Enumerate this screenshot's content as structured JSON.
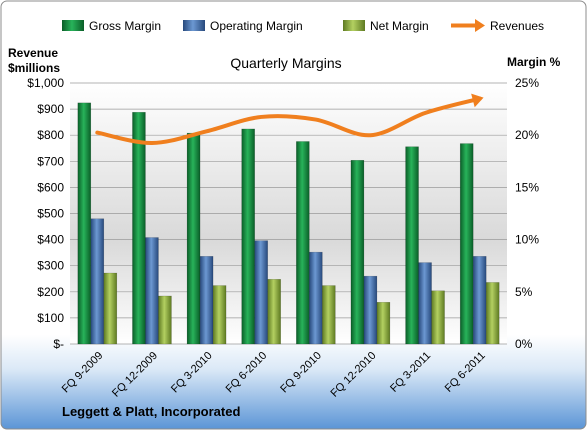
{
  "chart_data": {
    "type": "bar",
    "title": "Quarterly Margins",
    "footer": "Leggett & Platt, Incorporated",
    "y_left_label": [
      "Revenue",
      "$millions"
    ],
    "y_right_label": "Margin %",
    "categories": [
      "FQ 9-2009",
      "FQ 12-2009",
      "FQ 3-2010",
      "FQ 6-2010",
      "FQ 9-2010",
      "FQ 12-2010",
      "FQ 3-2011",
      "FQ 6-2011"
    ],
    "left_ticks": [
      "$-",
      "$100",
      "$200",
      "$300",
      "$400",
      "$500",
      "$600",
      "$700",
      "$800",
      "$900",
      "$1,000"
    ],
    "right_ticks": [
      "0%",
      "5%",
      "10%",
      "15%",
      "20%",
      "25%"
    ],
    "ylim_left": [
      0,
      1000
    ],
    "ylim_right": [
      0,
      25
    ],
    "legend_position": "top",
    "series": [
      {
        "name": "Gross Margin",
        "kind": "bar",
        "axis": "right",
        "color": "#0f8a3c",
        "values": [
          23.1,
          22.2,
          20.2,
          20.6,
          19.4,
          17.6,
          18.9,
          19.2
        ]
      },
      {
        "name": "Operating Margin",
        "kind": "bar",
        "axis": "right",
        "color": "#3d6fb3",
        "values": [
          12.0,
          10.2,
          8.4,
          9.9,
          8.8,
          6.5,
          7.8,
          8.4
        ]
      },
      {
        "name": "Net Margin",
        "kind": "bar",
        "axis": "right",
        "color": "#8fb23c",
        "values": [
          6.8,
          4.6,
          5.6,
          6.2,
          5.6,
          4.0,
          5.1,
          5.9
        ]
      },
      {
        "name": "Revenues",
        "kind": "line",
        "axis": "left",
        "color": "#f07f1e",
        "values": [
          810,
          770,
          815,
          870,
          860,
          800,
          885,
          940
        ]
      }
    ]
  }
}
